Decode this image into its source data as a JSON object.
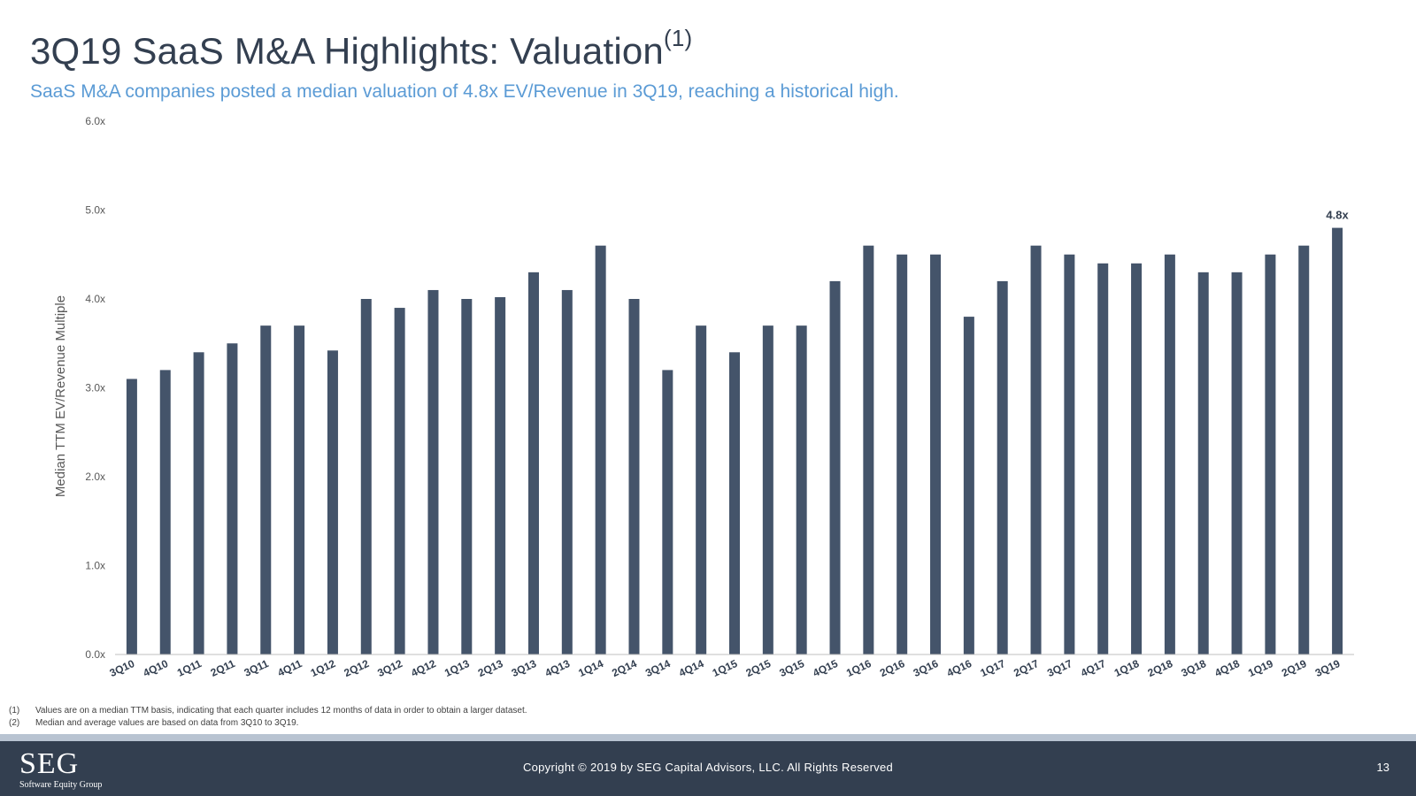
{
  "slide": {
    "title": "3Q19 SaaS M&A Highlights: Valuation",
    "title_footnote": "(1)",
    "subtitle": "SaaS M&A companies posted a median valuation of 4.8x EV/Revenue in 3Q19, reaching a historical high."
  },
  "colors": {
    "bar": "#44546a",
    "title": "#333f50",
    "subtitle": "#5b9bd5",
    "footer": "#333f50"
  },
  "chart_data": {
    "type": "bar",
    "title": "",
    "xlabel": "",
    "ylabel": "Median TTM EV/Revenue Multiple",
    "ylim": [
      0,
      6
    ],
    "yticks": [
      {
        "value": 0,
        "label": "0.0x"
      },
      {
        "value": 1,
        "label": "1.0x"
      },
      {
        "value": 2,
        "label": "2.0x"
      },
      {
        "value": 3,
        "label": "3.0x"
      },
      {
        "value": 4,
        "label": "4.0x"
      },
      {
        "value": 5,
        "label": "5.0x"
      },
      {
        "value": 6,
        "label": "6.0x"
      }
    ],
    "grid": false,
    "categories": [
      "3Q10",
      "4Q10",
      "1Q11",
      "2Q11",
      "3Q11",
      "4Q11",
      "1Q12",
      "2Q12",
      "3Q12",
      "4Q12",
      "1Q13",
      "2Q13",
      "3Q13",
      "4Q13",
      "1Q14",
      "2Q14",
      "3Q14",
      "4Q14",
      "1Q15",
      "2Q15",
      "3Q15",
      "4Q15",
      "1Q16",
      "2Q16",
      "3Q16",
      "4Q16",
      "1Q17",
      "2Q17",
      "3Q17",
      "4Q17",
      "1Q18",
      "2Q18",
      "3Q18",
      "4Q18",
      "1Q19",
      "2Q19",
      "3Q19"
    ],
    "values": [
      3.1,
      3.2,
      3.4,
      3.5,
      3.7,
      3.7,
      3.42,
      4.0,
      3.9,
      4.1,
      4.0,
      4.02,
      4.3,
      4.1,
      4.6,
      4.0,
      3.2,
      3.7,
      3.4,
      3.7,
      3.7,
      4.2,
      4.6,
      4.5,
      4.5,
      3.8,
      4.2,
      4.6,
      4.5,
      4.4,
      4.4,
      4.5,
      4.3,
      4.3,
      4.5,
      4.6,
      4.8
    ],
    "data_labels": [
      {
        "category": "3Q19",
        "label": "4.8x"
      }
    ]
  },
  "footnotes": [
    {
      "num": "(1)",
      "text": "Values are on a median TTM basis, indicating that each quarter includes 12 months of data in order to obtain a larger dataset."
    },
    {
      "num": "(2)",
      "text": "Median and average values are based on data from 3Q10 to 3Q19."
    }
  ],
  "footer": {
    "logo_main": "SEG",
    "logo_sub": "Software Equity Group",
    "copyright": "Copyright © 2019 by SEG Capital Advisors, LLC. All Rights Reserved",
    "page_number": "13"
  }
}
